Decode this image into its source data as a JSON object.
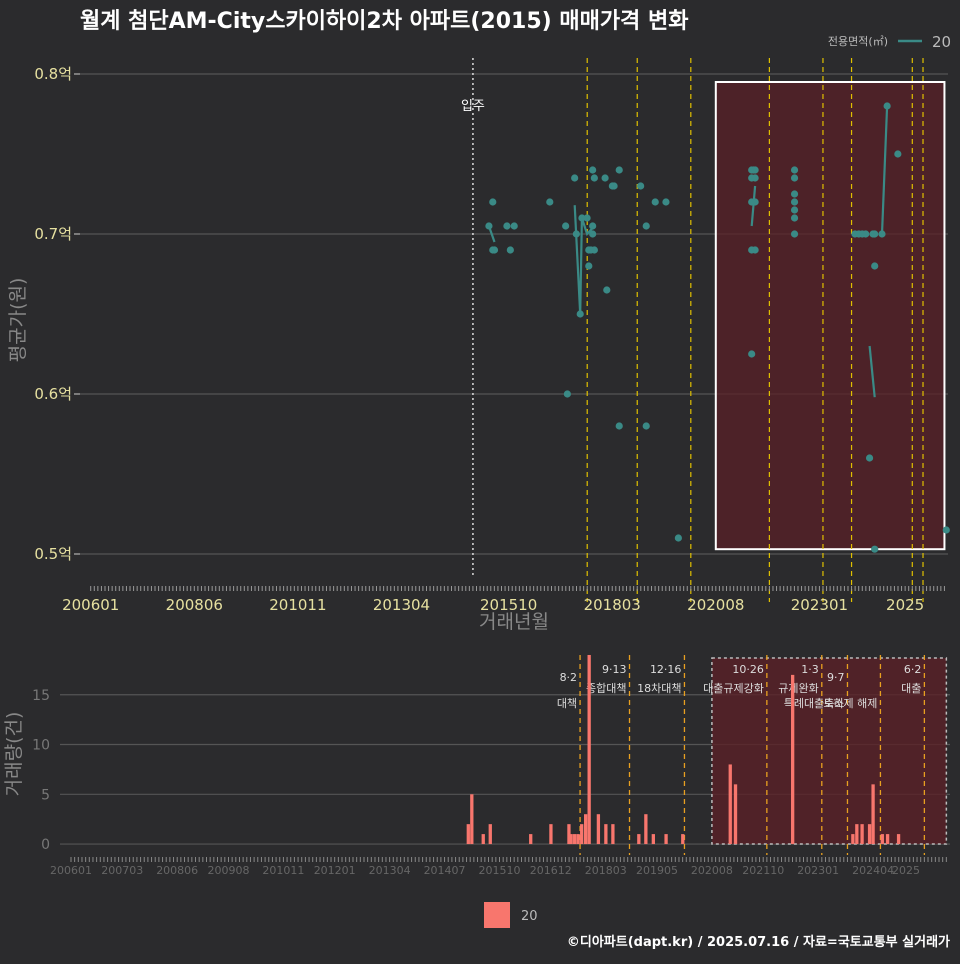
{
  "title": "월계 첨단AM-City스카이하이2차 아파트(2015) 매매가격 변화",
  "footer": "©디아파트(dapt.kr) / 2025.07.16 / 자료=국토교통부 실거래가",
  "colors": {
    "background": "#2b2b2d",
    "price": "#3a8a86",
    "volume": "#f8766d",
    "policy": "#e0c000",
    "policy_volume": "#e8a020",
    "shade": "#5a2027",
    "grid": "#555555",
    "axis_text": "#e6e0a0"
  },
  "chart_data": [
    {
      "type": "scatter",
      "name": "price",
      "xlabel": "거래년월",
      "ylabel": "평균가(원)",
      "ylim": [
        0.485,
        0.81
      ],
      "yticks": [
        {
          "v": 0.5,
          "label": "0.5억"
        },
        {
          "v": 0.6,
          "label": "0.6억"
        },
        {
          "v": 0.7,
          "label": "0.7억"
        },
        {
          "v": 0.8,
          "label": "0.8억"
        }
      ],
      "xticks": [
        "200601",
        "200806",
        "201011",
        "201304",
        "201510",
        "201803",
        "202008",
        "202301",
        "2025"
      ],
      "legend": {
        "title": "전용면적(㎡)",
        "entry": "20"
      },
      "move_in": {
        "x": 2014.917,
        "label": "입주"
      },
      "policy_lines": [
        2017.583,
        2018.75,
        2020.0,
        2021.833,
        2023.083,
        2023.75,
        2025.167,
        2025.417
      ],
      "highlight": {
        "x0": 2020.583,
        "x1": 2025.917,
        "y0": 0.503,
        "y1": 0.795
      },
      "points": [
        [
          2015.29,
          0.705
        ],
        [
          2015.38,
          0.72
        ],
        [
          2015.38,
          0.69
        ],
        [
          2015.42,
          0.69
        ],
        [
          2015.71,
          0.705
        ],
        [
          2015.79,
          0.69
        ],
        [
          2015.88,
          0.705
        ],
        [
          2016.71,
          0.72
        ],
        [
          2017.08,
          0.705
        ],
        [
          2017.12,
          0.6
        ],
        [
          2017.29,
          0.735
        ],
        [
          2017.33,
          0.7
        ],
        [
          2017.42,
          0.65
        ],
        [
          2017.46,
          0.71
        ],
        [
          2017.58,
          0.71
        ],
        [
          2017.62,
          0.69
        ],
        [
          2017.62,
          0.68
        ],
        [
          2017.67,
          0.69
        ],
        [
          2017.71,
          0.7
        ],
        [
          2017.71,
          0.705
        ],
        [
          2017.71,
          0.74
        ],
        [
          2017.75,
          0.735
        ],
        [
          2017.75,
          0.69
        ],
        [
          2018.0,
          0.735
        ],
        [
          2018.04,
          0.665
        ],
        [
          2018.17,
          0.73
        ],
        [
          2018.21,
          0.73
        ],
        [
          2018.33,
          0.74
        ],
        [
          2018.33,
          0.58
        ],
        [
          2018.83,
          0.73
        ],
        [
          2018.96,
          0.705
        ],
        [
          2018.96,
          0.58
        ],
        [
          2019.17,
          0.72
        ],
        [
          2019.42,
          0.72
        ],
        [
          2019.71,
          0.51
        ],
        [
          2021.42,
          0.74
        ],
        [
          2021.42,
          0.735
        ],
        [
          2021.42,
          0.72
        ],
        [
          2021.42,
          0.69
        ],
        [
          2021.42,
          0.625
        ],
        [
          2021.46,
          0.74
        ],
        [
          2021.5,
          0.74
        ],
        [
          2021.5,
          0.735
        ],
        [
          2021.5,
          0.72
        ],
        [
          2021.5,
          0.69
        ],
        [
          2022.42,
          0.74
        ],
        [
          2022.42,
          0.735
        ],
        [
          2022.42,
          0.72
        ],
        [
          2022.42,
          0.715
        ],
        [
          2022.42,
          0.71
        ],
        [
          2022.42,
          0.7
        ],
        [
          2022.42,
          0.725
        ],
        [
          2023.83,
          0.7
        ],
        [
          2023.92,
          0.7
        ],
        [
          2024.0,
          0.7
        ],
        [
          2024.08,
          0.7
        ],
        [
          2024.17,
          0.56
        ],
        [
          2024.25,
          0.7
        ],
        [
          2024.29,
          0.7
        ],
        [
          2024.29,
          0.68
        ],
        [
          2024.29,
          0.503
        ],
        [
          2024.46,
          0.7
        ],
        [
          2024.58,
          0.78
        ],
        [
          2024.83,
          0.75
        ],
        [
          2025.96,
          0.515
        ]
      ],
      "line_segments": [
        [
          [
            2015.29,
            0.705
          ],
          [
            2015.42,
            0.695
          ]
        ],
        [
          [
            2017.29,
            0.718
          ],
          [
            2017.42,
            0.65
          ],
          [
            2017.46,
            0.71
          ],
          [
            2017.58,
            0.7
          ],
          [
            2017.75,
            0.705
          ]
        ],
        [
          [
            2021.42,
            0.705
          ],
          [
            2021.5,
            0.73
          ]
        ],
        [
          [
            2024.17,
            0.63
          ],
          [
            2024.29,
            0.598
          ]
        ],
        [
          [
            2024.46,
            0.7
          ],
          [
            2024.58,
            0.78
          ]
        ]
      ]
    },
    {
      "type": "bar",
      "name": "volume",
      "xlabel": "",
      "ylabel": "거래량(건)",
      "ylim": [
        -1,
        19.5
      ],
      "yticks": [
        0,
        5,
        10,
        15
      ],
      "xticks": [
        "200601",
        "200703",
        "200806",
        "200908",
        "201011",
        "201201",
        "201304",
        "201407",
        "201510",
        "201612",
        "201803",
        "201905",
        "202008",
        "202110",
        "202301",
        "202404",
        "2025"
      ],
      "legend": "20",
      "policy_lines": [
        {
          "x": 2017.583,
          "date": "8·2",
          "label": "대책",
          "row": 1
        },
        {
          "x": 2018.708,
          "date": "9·13",
          "label": "종합대책",
          "row": 0
        },
        {
          "x": 2019.958,
          "date": "12·16",
          "label": "18차대책",
          "row": 0
        },
        {
          "x": 2021.833,
          "date": "10·26",
          "label": "대출규제강화",
          "row": 0
        },
        {
          "x": 2023.083,
          "date": "1·3",
          "label": "규제완화",
          "row": 0
        },
        {
          "x": 2023.667,
          "date": "9·7",
          "label": "특례대출축소",
          "row": 1
        },
        {
          "x": 2024.417,
          "date": "",
          "label": "토허제 해제",
          "row": 1
        },
        {
          "x": 2025.417,
          "date": "6·2",
          "label": "대출",
          "row": 0
        }
      ],
      "highlight": {
        "x0": 2020.583,
        "x1": 2025.917
      },
      "bars": [
        [
          2015.04,
          2
        ],
        [
          2015.12,
          5
        ],
        [
          2015.38,
          1
        ],
        [
          2015.54,
          2
        ],
        [
          2016.46,
          1
        ],
        [
          2016.92,
          2
        ],
        [
          2017.33,
          2
        ],
        [
          2017.38,
          1
        ],
        [
          2017.46,
          1
        ],
        [
          2017.54,
          1
        ],
        [
          2017.62,
          2
        ],
        [
          2017.71,
          3
        ],
        [
          2017.79,
          19
        ],
        [
          2018.0,
          3
        ],
        [
          2018.17,
          2
        ],
        [
          2018.33,
          2
        ],
        [
          2018.92,
          1
        ],
        [
          2019.08,
          3
        ],
        [
          2019.25,
          1
        ],
        [
          2019.54,
          1
        ],
        [
          2019.92,
          1
        ],
        [
          2021.0,
          8
        ],
        [
          2021.12,
          6
        ],
        [
          2022.42,
          17
        ],
        [
          2023.79,
          1
        ],
        [
          2023.88,
          2
        ],
        [
          2024.0,
          2
        ],
        [
          2024.17,
          2
        ],
        [
          2024.25,
          6
        ],
        [
          2024.46,
          1
        ],
        [
          2024.58,
          1
        ],
        [
          2024.83,
          1
        ]
      ]
    }
  ]
}
